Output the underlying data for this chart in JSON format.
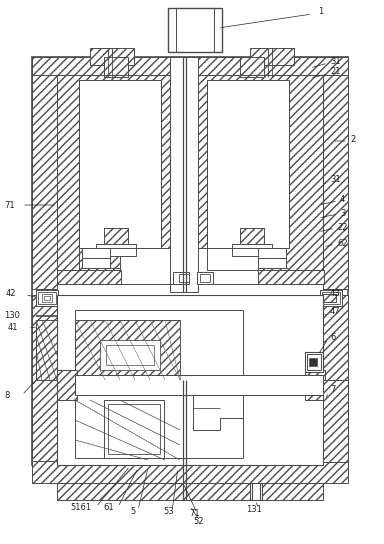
{
  "bg": "#ffffff",
  "lc": "#4a4a4a",
  "hc": "#4a4a4a",
  "tc": "#222222",
  "fig_w": 3.84,
  "fig_h": 5.44,
  "dpi": 100
}
